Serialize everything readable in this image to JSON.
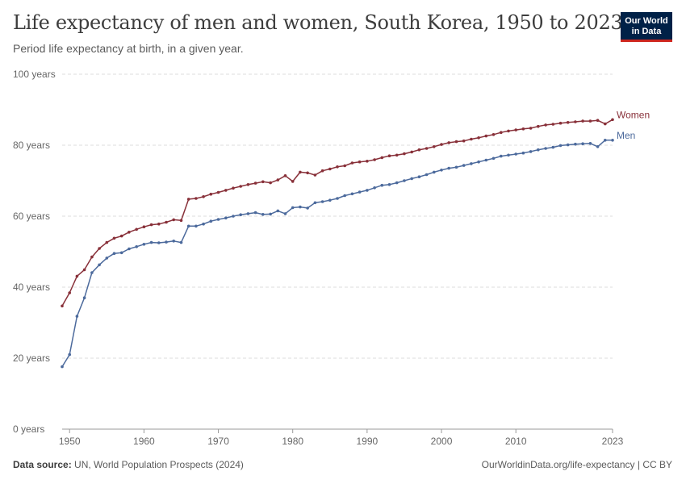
{
  "header": {
    "title": "Life expectancy of men and women, South Korea, 1950 to 2023",
    "subtitle": "Period life expectancy at birth, in a given year."
  },
  "logo": {
    "line1": "Our World",
    "line2": "in Data"
  },
  "footer": {
    "source_label": "Data source:",
    "source_text": "UN, World Population Prospects (2024)",
    "link": "OurWorldinData.org/life-expectancy | CC BY"
  },
  "colors": {
    "women": "#883039",
    "men": "#4c6a9c",
    "grid": "#dddddd",
    "axis": "#999999"
  },
  "chart_data": {
    "type": "line",
    "title": "Life expectancy of men and women, South Korea, 1950 to 2023",
    "xlabel": "",
    "ylabel": "",
    "xlim": [
      1949,
      2023
    ],
    "ylim": [
      0,
      100
    ],
    "y_ticks": [
      0,
      20,
      40,
      60,
      80,
      100
    ],
    "y_tick_labels": [
      "0 years",
      "20 years",
      "40 years",
      "60 years",
      "80 years",
      "100 years"
    ],
    "x_ticks": [
      1950,
      1960,
      1970,
      1980,
      1990,
      2000,
      2010,
      2023
    ],
    "x_tick_labels": [
      "1950",
      "1960",
      "1970",
      "1980",
      "1990",
      "2000",
      "2010",
      "2023"
    ],
    "grid": true,
    "x": [
      1949,
      1950,
      1951,
      1952,
      1953,
      1954,
      1955,
      1956,
      1957,
      1958,
      1959,
      1960,
      1961,
      1962,
      1963,
      1964,
      1965,
      1966,
      1967,
      1968,
      1969,
      1970,
      1971,
      1972,
      1973,
      1974,
      1975,
      1976,
      1977,
      1978,
      1979,
      1980,
      1981,
      1982,
      1983,
      1984,
      1985,
      1986,
      1987,
      1988,
      1989,
      1990,
      1991,
      1992,
      1993,
      1994,
      1995,
      1996,
      1997,
      1998,
      1999,
      2000,
      2001,
      2002,
      2003,
      2004,
      2005,
      2006,
      2007,
      2008,
      2009,
      2010,
      2011,
      2012,
      2013,
      2014,
      2015,
      2016,
      2017,
      2018,
      2019,
      2020,
      2021,
      2022,
      2023
    ],
    "series": [
      {
        "name": "Women",
        "values": [
          34.7,
          38.4,
          43.1,
          44.9,
          48.5,
          50.9,
          52.6,
          53.8,
          54.4,
          55.5,
          56.3,
          57.0,
          57.6,
          57.8,
          58.3,
          59.0,
          58.8,
          64.8,
          65.0,
          65.5,
          66.2,
          66.7,
          67.3,
          67.9,
          68.4,
          68.9,
          69.3,
          69.7,
          69.4,
          70.2,
          71.4,
          69.8,
          72.4,
          72.2,
          71.6,
          72.8,
          73.3,
          73.9,
          74.2,
          75.0,
          75.3,
          75.5,
          75.9,
          76.5,
          77.0,
          77.2,
          77.6,
          78.1,
          78.7,
          79.1,
          79.6,
          80.2,
          80.7,
          81.0,
          81.2,
          81.7,
          82.1,
          82.6,
          83.0,
          83.6,
          84.0,
          84.3,
          84.6,
          84.8,
          85.3,
          85.7,
          85.9,
          86.2,
          86.4,
          86.6,
          86.8,
          86.8,
          87.0,
          86.0,
          87.2
        ]
      },
      {
        "name": "Men",
        "values": [
          17.6,
          21.0,
          31.8,
          37.0,
          44.1,
          46.3,
          48.2,
          49.5,
          49.7,
          50.8,
          51.4,
          52.1,
          52.6,
          52.5,
          52.7,
          53.0,
          52.6,
          57.2,
          57.2,
          57.8,
          58.6,
          59.1,
          59.5,
          60.0,
          60.4,
          60.7,
          61.0,
          60.5,
          60.6,
          61.5,
          60.7,
          62.4,
          62.6,
          62.3,
          63.8,
          64.1,
          64.5,
          65.0,
          65.8,
          66.3,
          66.8,
          67.3,
          68.0,
          68.7,
          68.9,
          69.4,
          70.0,
          70.6,
          71.1,
          71.7,
          72.4,
          73.0,
          73.5,
          73.8,
          74.3,
          74.8,
          75.3,
          75.8,
          76.3,
          76.9,
          77.2,
          77.5,
          77.8,
          78.2,
          78.7,
          79.1,
          79.4,
          79.9,
          80.1,
          80.3,
          80.4,
          80.5,
          79.6,
          81.4,
          81.4
        ]
      }
    ]
  }
}
